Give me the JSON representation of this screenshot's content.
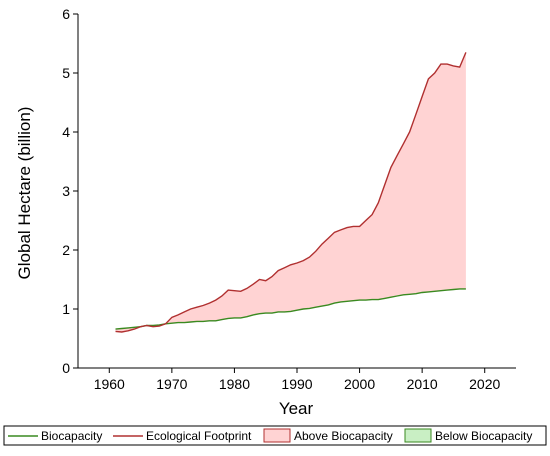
{
  "chart_data": {
    "type": "area",
    "title": "",
    "xlabel": "Year",
    "ylabel": "Global Hectare (billion)",
    "xlim": [
      1955,
      2025
    ],
    "ylim": [
      0,
      6
    ],
    "x_ticks": [
      1960,
      1970,
      1980,
      1990,
      2000,
      2010,
      2020
    ],
    "y_ticks": [
      0,
      1,
      2,
      3,
      4,
      5,
      6
    ],
    "grid": false,
    "legend_position": "bottom",
    "x": [
      1961,
      1962,
      1963,
      1964,
      1965,
      1966,
      1967,
      1968,
      1969,
      1970,
      1971,
      1972,
      1973,
      1974,
      1975,
      1976,
      1977,
      1978,
      1979,
      1980,
      1981,
      1982,
      1983,
      1984,
      1985,
      1986,
      1987,
      1988,
      1989,
      1990,
      1991,
      1992,
      1993,
      1994,
      1995,
      1996,
      1997,
      1998,
      1999,
      2000,
      2001,
      2002,
      2003,
      2004,
      2005,
      2006,
      2007,
      2008,
      2009,
      2010,
      2011,
      2012,
      2013,
      2014,
      2015,
      2016,
      2017
    ],
    "series": [
      {
        "name": "Biocapacity",
        "color": "#3a8a20",
        "values": [
          0.66,
          0.67,
          0.68,
          0.69,
          0.7,
          0.72,
          0.72,
          0.73,
          0.75,
          0.76,
          0.77,
          0.77,
          0.78,
          0.79,
          0.79,
          0.8,
          0.8,
          0.82,
          0.84,
          0.85,
          0.85,
          0.87,
          0.9,
          0.92,
          0.93,
          0.93,
          0.95,
          0.95,
          0.96,
          0.98,
          1.0,
          1.01,
          1.03,
          1.05,
          1.07,
          1.1,
          1.12,
          1.13,
          1.14,
          1.15,
          1.15,
          1.16,
          1.16,
          1.18,
          1.2,
          1.22,
          1.24,
          1.25,
          1.26,
          1.28,
          1.29,
          1.3,
          1.31,
          1.32,
          1.33,
          1.34,
          1.34
        ]
      },
      {
        "name": "Ecological Footprint",
        "color": "#b03030",
        "values": [
          0.62,
          0.61,
          0.63,
          0.66,
          0.7,
          0.72,
          0.7,
          0.71,
          0.75,
          0.86,
          0.9,
          0.95,
          1.0,
          1.03,
          1.06,
          1.1,
          1.15,
          1.22,
          1.32,
          1.31,
          1.3,
          1.35,
          1.42,
          1.5,
          1.48,
          1.55,
          1.65,
          1.7,
          1.75,
          1.78,
          1.82,
          1.88,
          1.98,
          2.1,
          2.2,
          2.3,
          2.34,
          2.38,
          2.4,
          2.4,
          2.5,
          2.6,
          2.8,
          3.1,
          3.4,
          3.6,
          3.8,
          4.0,
          4.3,
          4.6,
          4.9,
          5.0,
          5.15,
          5.15,
          5.12,
          5.1,
          5.35
        ]
      }
    ],
    "fills": [
      {
        "name": "Above Biocapacity",
        "color": "#ffd3d3",
        "edge": "#b03030"
      },
      {
        "name": "Below Biocapacity",
        "color": "#c9efc4",
        "edge": "#3a8a20"
      }
    ]
  }
}
